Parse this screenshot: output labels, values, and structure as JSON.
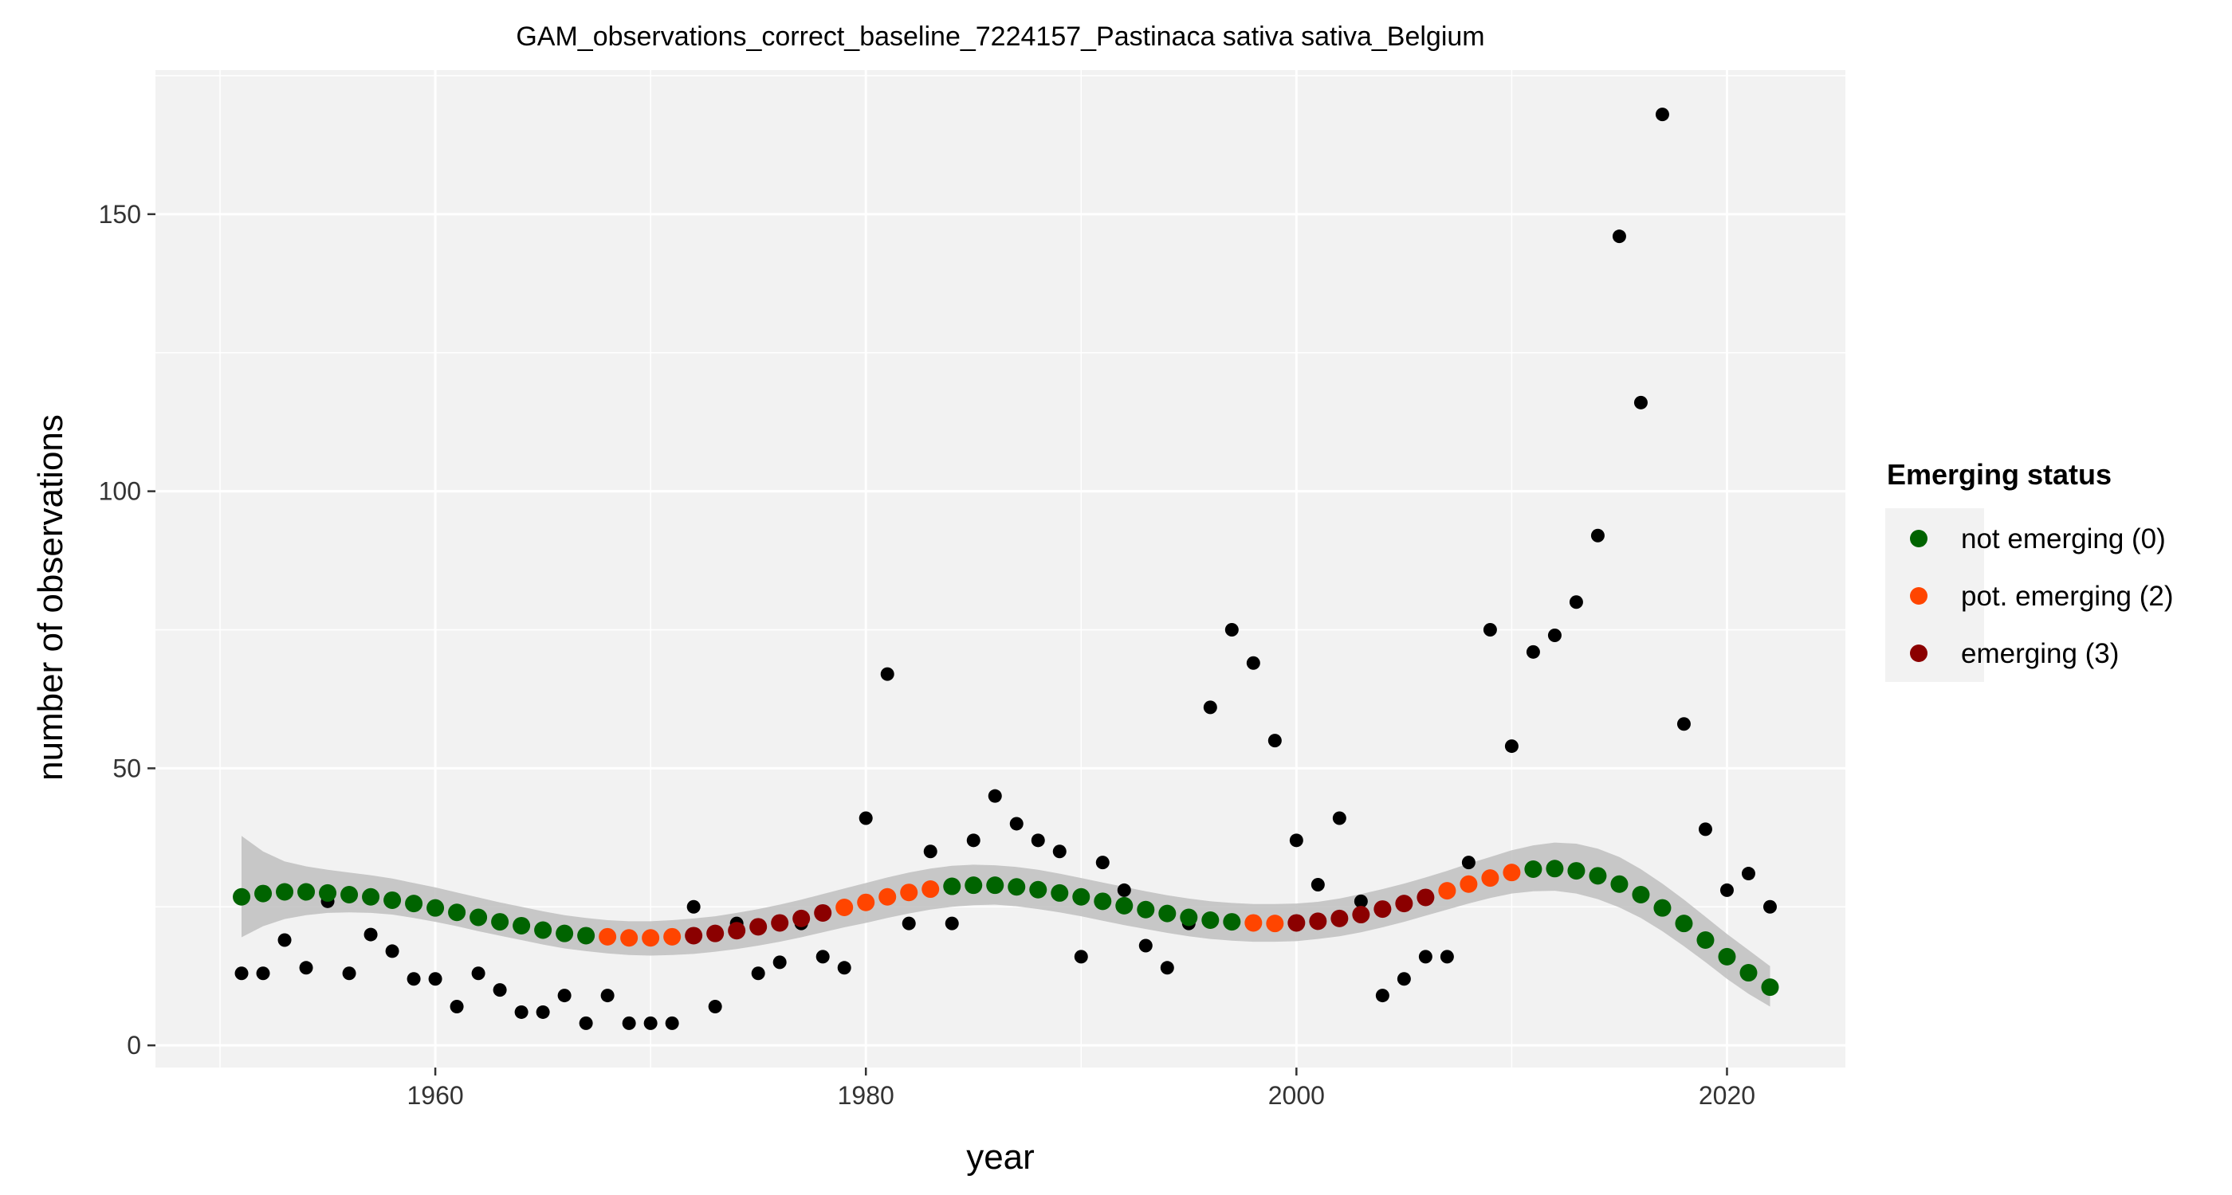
{
  "chart_data": {
    "type": "scatter",
    "title": "GAM_observations_correct_baseline_7224157_Pastinaca sativa sativa_Belgium",
    "xlabel": "year",
    "ylabel": "number of observations",
    "xlim": [
      1947,
      2025.5
    ],
    "ylim": [
      -4,
      176
    ],
    "xticks": [
      1960,
      1980,
      2000,
      2020
    ],
    "yticks": [
      0,
      50,
      100,
      150
    ],
    "grid": true,
    "legend": {
      "title": "Emerging status",
      "position": "right",
      "entries": [
        {
          "label": "not emerging (0)",
          "color": "#006400"
        },
        {
          "label": "pot. emerging (2)",
          "color": "#FF4500"
        },
        {
          "label": "emerging (3)",
          "color": "#8B0000"
        }
      ]
    },
    "observations": {
      "color": "#000000",
      "points": [
        [
          1951,
          13
        ],
        [
          1952,
          13
        ],
        [
          1953,
          19
        ],
        [
          1954,
          14
        ],
        [
          1955,
          26
        ],
        [
          1956,
          13
        ],
        [
          1957,
          20
        ],
        [
          1958,
          17
        ],
        [
          1959,
          12
        ],
        [
          1960,
          12
        ],
        [
          1961,
          7
        ],
        [
          1962,
          13
        ],
        [
          1963,
          10
        ],
        [
          1964,
          6
        ],
        [
          1965,
          6
        ],
        [
          1966,
          9
        ],
        [
          1967,
          4
        ],
        [
          1968,
          9
        ],
        [
          1969,
          4
        ],
        [
          1970,
          4
        ],
        [
          1971,
          4
        ],
        [
          1972,
          25
        ],
        [
          1973,
          7
        ],
        [
          1974,
          22
        ],
        [
          1975,
          13
        ],
        [
          1976,
          15
        ],
        [
          1977,
          22
        ],
        [
          1978,
          16
        ],
        [
          1979,
          14
        ],
        [
          1980,
          41
        ],
        [
          1981,
          67
        ],
        [
          1982,
          22
        ],
        [
          1983,
          35
        ],
        [
          1984,
          22
        ],
        [
          1985,
          37
        ],
        [
          1986,
          45
        ],
        [
          1987,
          40
        ],
        [
          1988,
          37
        ],
        [
          1989,
          35
        ],
        [
          1990,
          16
        ],
        [
          1991,
          33
        ],
        [
          1992,
          28
        ],
        [
          1993,
          18
        ],
        [
          1994,
          14
        ],
        [
          1995,
          22
        ],
        [
          1996,
          61
        ],
        [
          1997,
          75
        ],
        [
          1998,
          69
        ],
        [
          1999,
          55
        ],
        [
          2000,
          37
        ],
        [
          2001,
          29
        ],
        [
          2002,
          41
        ],
        [
          2003,
          26
        ],
        [
          2004,
          9
        ],
        [
          2005,
          12
        ],
        [
          2006,
          16
        ],
        [
          2007,
          16
        ],
        [
          2008,
          33
        ],
        [
          2009,
          75
        ],
        [
          2010,
          54
        ],
        [
          2011,
          71
        ],
        [
          2012,
          74
        ],
        [
          2013,
          80
        ],
        [
          2014,
          92
        ],
        [
          2015,
          146
        ],
        [
          2016,
          116
        ],
        [
          2017,
          168
        ],
        [
          2018,
          58
        ],
        [
          2019,
          39
        ],
        [
          2020,
          28
        ],
        [
          2021,
          31
        ],
        [
          2022,
          25
        ]
      ]
    },
    "gam_fit": {
      "years": [
        1951,
        1952,
        1953,
        1954,
        1955,
        1956,
        1957,
        1958,
        1959,
        1960,
        1961,
        1962,
        1963,
        1964,
        1965,
        1966,
        1967,
        1968,
        1969,
        1970,
        1971,
        1972,
        1973,
        1974,
        1975,
        1976,
        1977,
        1978,
        1979,
        1980,
        1981,
        1982,
        1983,
        1984,
        1985,
        1986,
        1987,
        1988,
        1989,
        1990,
        1991,
        1992,
        1993,
        1994,
        1995,
        1996,
        1997,
        1998,
        1999,
        2000,
        2001,
        2002,
        2003,
        2004,
        2005,
        2006,
        2007,
        2008,
        2009,
        2010,
        2011,
        2012,
        2013,
        2014,
        2015,
        2016,
        2017,
        2018,
        2019,
        2020,
        2021,
        2022
      ],
      "fit": [
        26.8,
        27.4,
        27.7,
        27.7,
        27.5,
        27.2,
        26.8,
        26.2,
        25.6,
        24.8,
        24.0,
        23.1,
        22.3,
        21.6,
        20.8,
        20.2,
        19.8,
        19.6,
        19.4,
        19.4,
        19.6,
        19.8,
        20.2,
        20.7,
        21.4,
        22.1,
        22.9,
        23.9,
        24.9,
        25.8,
        26.8,
        27.6,
        28.2,
        28.7,
        28.9,
        28.9,
        28.6,
        28.1,
        27.5,
        26.8,
        26.0,
        25.2,
        24.5,
        23.8,
        23.1,
        22.6,
        22.3,
        22.1,
        22.0,
        22.1,
        22.4,
        22.9,
        23.6,
        24.6,
        25.6,
        26.7,
        27.9,
        29.1,
        30.2,
        31.2,
        31.8,
        31.9,
        31.5,
        30.6,
        29.1,
        27.2,
        24.8,
        22.0,
        19.0,
        16.0,
        13.1,
        10.5
      ],
      "lower": [
        19.5,
        21.5,
        22.8,
        23.5,
        23.9,
        24.0,
        23.9,
        23.6,
        23.0,
        22.3,
        21.5,
        20.6,
        19.8,
        19.0,
        18.2,
        17.5,
        17.0,
        16.6,
        16.3,
        16.2,
        16.3,
        16.5,
        16.9,
        17.4,
        18.0,
        18.7,
        19.5,
        20.4,
        21.3,
        22.1,
        23.0,
        23.8,
        24.5,
        25.0,
        25.3,
        25.4,
        25.1,
        24.6,
        24.0,
        23.3,
        22.5,
        21.7,
        21.0,
        20.3,
        19.7,
        19.2,
        18.9,
        18.7,
        18.7,
        18.8,
        19.2,
        19.7,
        20.4,
        21.3,
        22.3,
        23.4,
        24.5,
        25.6,
        26.6,
        27.4,
        27.8,
        27.9,
        27.4,
        26.4,
        24.9,
        23.0,
        20.6,
        17.9,
        15.0,
        12.0,
        9.3,
        7.0
      ],
      "upper": [
        37.8,
        35.0,
        33.2,
        32.3,
        31.7,
        31.2,
        30.7,
        30.1,
        29.3,
        28.5,
        27.6,
        26.7,
        25.8,
        25.0,
        24.2,
        23.5,
        23.0,
        22.6,
        22.4,
        22.4,
        22.6,
        22.9,
        23.3,
        23.9,
        24.6,
        25.4,
        26.3,
        27.3,
        28.3,
        29.3,
        30.3,
        31.2,
        31.9,
        32.4,
        32.6,
        32.5,
        32.2,
        31.7,
        31.0,
        30.2,
        29.4,
        28.6,
        27.8,
        27.1,
        26.5,
        26.0,
        25.7,
        25.5,
        25.5,
        25.6,
        25.9,
        26.5,
        27.3,
        28.2,
        29.2,
        30.3,
        31.5,
        32.8,
        34.0,
        35.2,
        36.1,
        36.6,
        36.4,
        35.5,
        34.0,
        31.8,
        29.2,
        26.3,
        23.2,
        20.1,
        17.2,
        14.3
      ],
      "status": [
        0,
        0,
        0,
        0,
        0,
        0,
        0,
        0,
        0,
        0,
        0,
        0,
        0,
        0,
        0,
        0,
        0,
        2,
        2,
        2,
        2,
        3,
        3,
        3,
        3,
        3,
        3,
        3,
        2,
        2,
        2,
        2,
        2,
        0,
        0,
        0,
        0,
        0,
        0,
        0,
        0,
        0,
        0,
        0,
        0,
        0,
        0,
        2,
        2,
        3,
        3,
        3,
        3,
        3,
        3,
        3,
        2,
        2,
        2,
        2,
        0,
        0,
        0,
        0,
        0,
        0,
        0,
        0,
        0,
        0,
        0,
        0
      ]
    }
  }
}
